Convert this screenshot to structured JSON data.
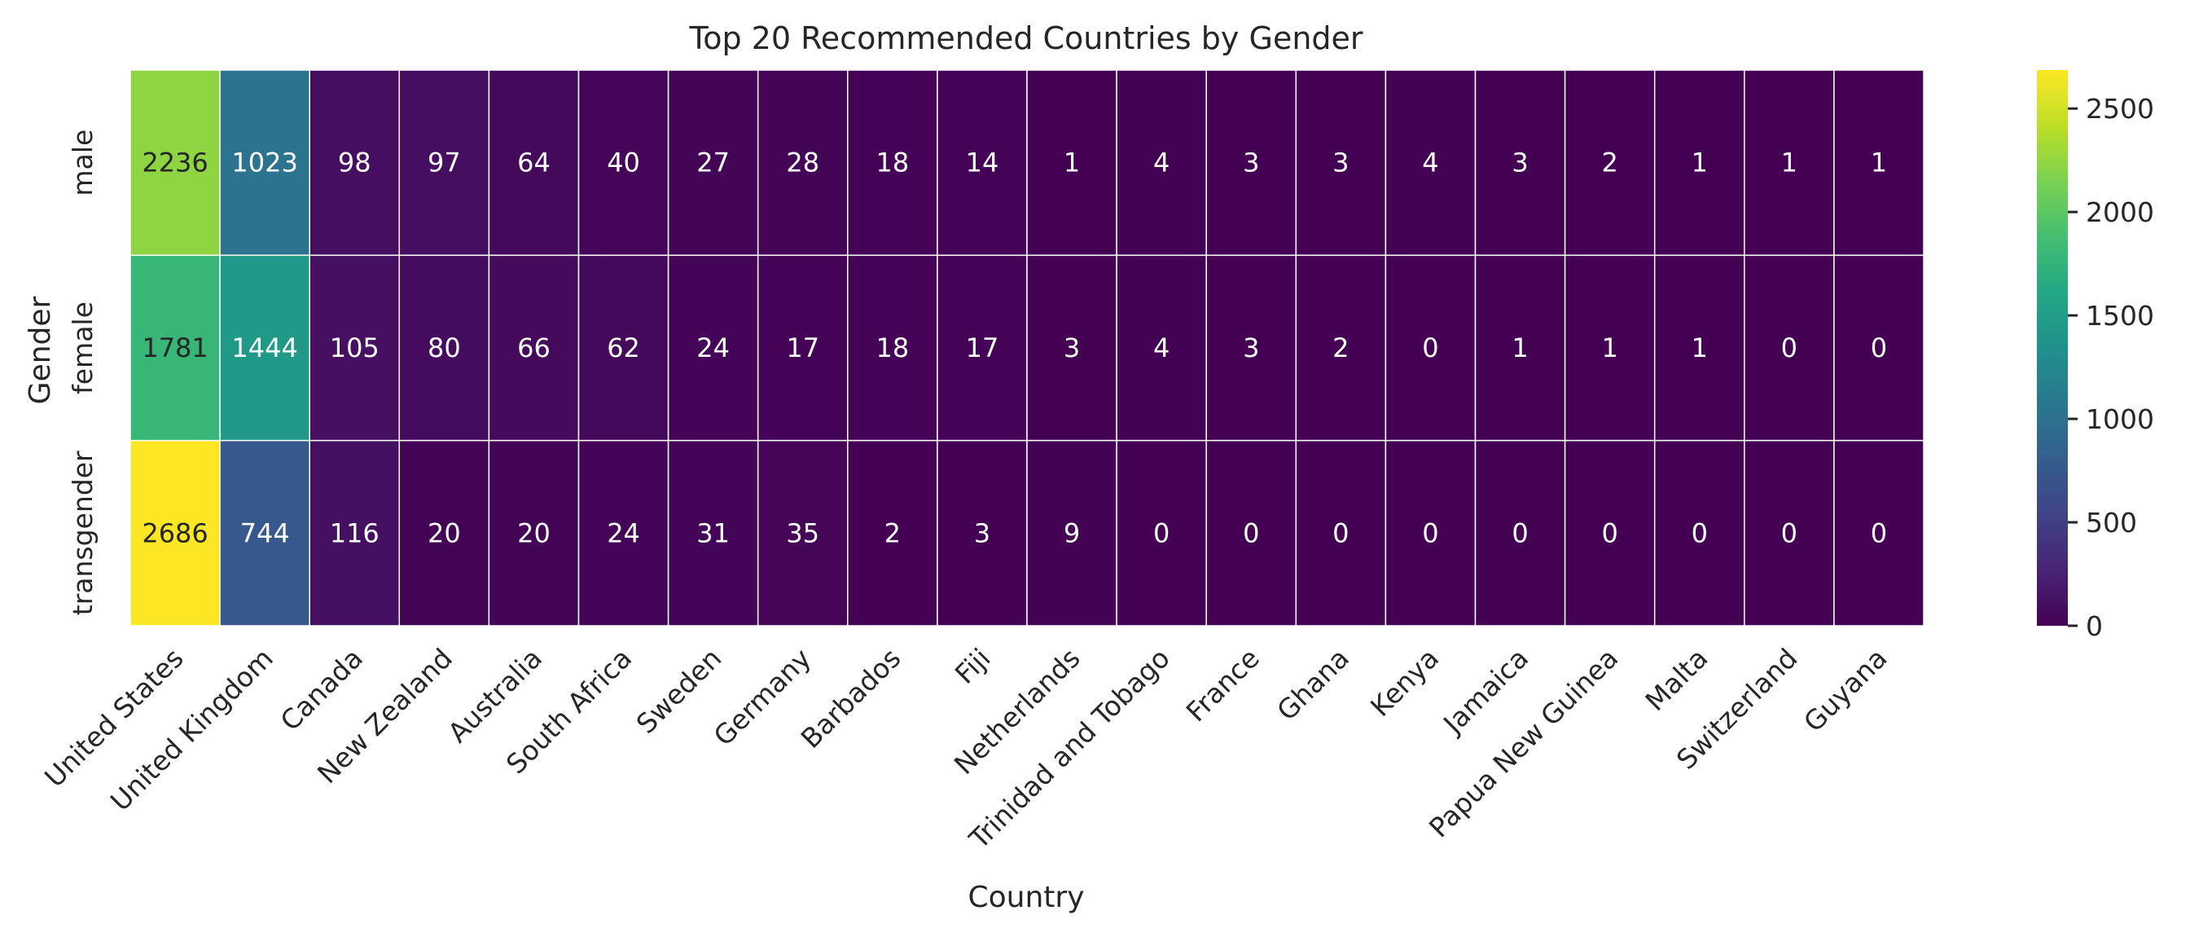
{
  "chart_data": {
    "type": "heatmap",
    "title": "Top 20 Recommended Countries by Gender",
    "xlabel": "Country",
    "ylabel": "Gender",
    "categories": [
      "United States",
      "United Kingdom",
      "Canada",
      "New Zealand",
      "Australia",
      "South Africa",
      "Sweden",
      "Germany",
      "Barbados",
      "Fiji",
      "Netherlands",
      "Trinidad and Tobago",
      "France",
      "Ghana",
      "Kenya",
      "Jamaica",
      "Papua New Guinea",
      "Malta",
      "Switzerland",
      "Guyana"
    ],
    "rows": [
      "male",
      "female",
      "transgender"
    ],
    "values": [
      [
        2236,
        1023,
        98,
        97,
        64,
        40,
        27,
        28,
        18,
        14,
        1,
        4,
        3,
        3,
        4,
        3,
        2,
        1,
        1,
        1
      ],
      [
        1781,
        1444,
        105,
        80,
        66,
        62,
        24,
        17,
        18,
        17,
        3,
        4,
        3,
        2,
        0,
        1,
        1,
        1,
        0,
        0
      ],
      [
        2686,
        744,
        116,
        20,
        20,
        24,
        31,
        35,
        2,
        3,
        9,
        0,
        0,
        0,
        0,
        0,
        0,
        0,
        0,
        0
      ]
    ],
    "colormap": "viridis",
    "vmin": 0,
    "vmax": 2686,
    "colorbar_ticks": [
      0,
      500,
      1000,
      1500,
      2000,
      2500
    ],
    "colorbar_labels": [
      "0",
      "500",
      "1000",
      "1500",
      "2000",
      "2500"
    ]
  }
}
